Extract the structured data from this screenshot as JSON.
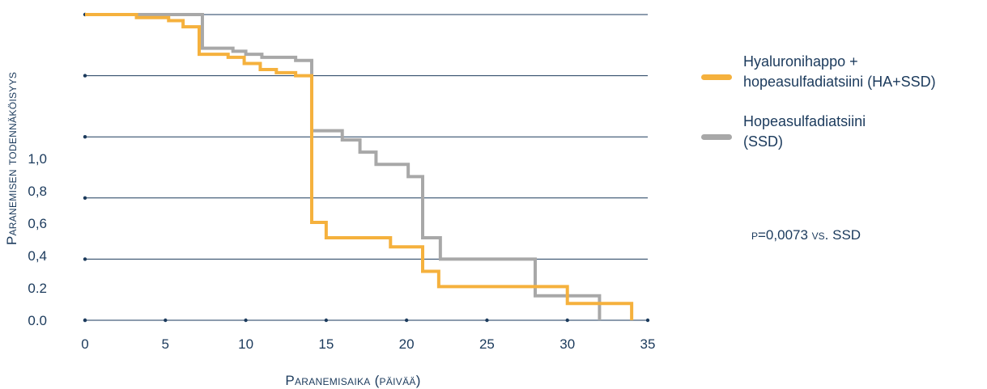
{
  "chart_data": {
    "type": "line",
    "step": true,
    "xlabel": "Paranemisaika (päivää)",
    "ylabel": "Paranemisen todennäköisyys",
    "xlim": [
      0,
      35
    ],
    "x_ticks": [
      "0",
      "5",
      "10",
      "15",
      "20",
      "25",
      "30",
      "35"
    ],
    "y_tick_labels": [
      "1,0",
      "0,8",
      "0,6",
      "0,4",
      "0.2",
      "0.0"
    ],
    "grid": true,
    "legend_position": "right",
    "series": [
      {
        "name": "Hyaluronihappo +\nhopeasulfadiatsiini (HA+SSD)",
        "color": "#f5b13d",
        "points": [
          [
            0,
            1.0
          ],
          [
            3.2,
            0.99
          ],
          [
            5.2,
            0.98
          ],
          [
            6.1,
            0.96
          ],
          [
            7.1,
            0.87
          ],
          [
            8.9,
            0.86
          ],
          [
            9.9,
            0.84
          ],
          [
            10.9,
            0.82
          ],
          [
            11.9,
            0.81
          ],
          [
            13.1,
            0.8
          ],
          [
            14.1,
            0.32
          ],
          [
            15.0,
            0.27
          ],
          [
            19.0,
            0.24
          ],
          [
            21.0,
            0.16
          ],
          [
            22.0,
            0.11
          ],
          [
            30.0,
            0.055
          ],
          [
            34.0,
            0.0
          ]
        ]
      },
      {
        "name": "Hopeasulfadiatsiini\n(SSD)",
        "color": "#a8a8a8",
        "points": [
          [
            0,
            1.0
          ],
          [
            7.3,
            0.89
          ],
          [
            9.2,
            0.88
          ],
          [
            10.0,
            0.87
          ],
          [
            11.0,
            0.86
          ],
          [
            13.1,
            0.85
          ],
          [
            14.1,
            0.62
          ],
          [
            16.0,
            0.59
          ],
          [
            17.1,
            0.55
          ],
          [
            18.1,
            0.51
          ],
          [
            20.1,
            0.47
          ],
          [
            21.0,
            0.27
          ],
          [
            22.1,
            0.2
          ],
          [
            28.0,
            0.08
          ],
          [
            32.0,
            0.0
          ]
        ]
      }
    ],
    "annotation": "p=0,0073 vs. SSD"
  }
}
